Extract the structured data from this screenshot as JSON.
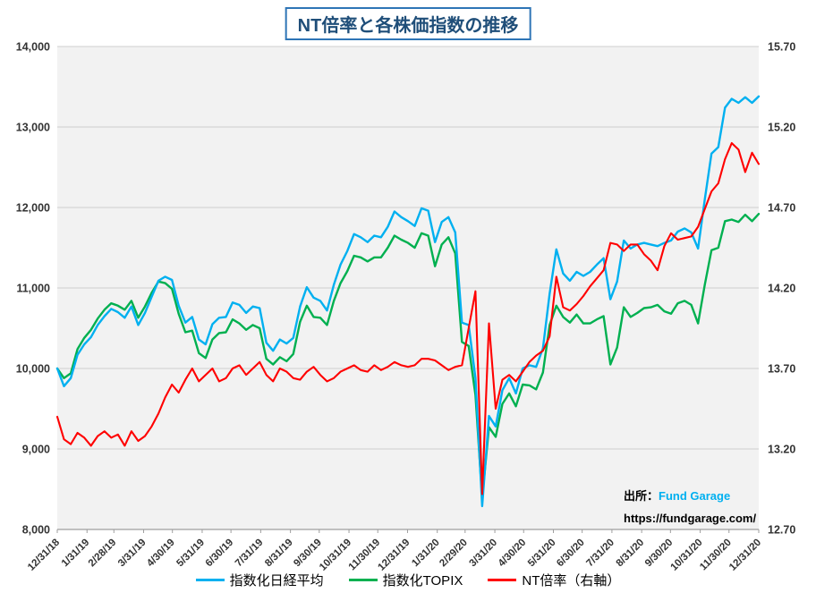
{
  "title": "NT倍率と各株価指数の推移",
  "source_note": {
    "prefix": "出所：",
    "brand": "Fund Garage",
    "url": "https://fundgarage.com/"
  },
  "colors": {
    "nikkei": "#00B0F0",
    "topix": "#00B050",
    "nt": "#FF0000",
    "brand": "#00B0F0",
    "title_border": "#2E75B6",
    "title_text": "#1F4E79",
    "plot_bg": "#F2F2F2",
    "grid": "#CFCFCF",
    "axis_line": "#9E9E9E",
    "axis_text": "#333333"
  },
  "chart_data": {
    "type": "line",
    "title": "NT倍率と各株価指数の推移",
    "legend_position": "bottom",
    "grid": "horizontal-only",
    "x_tick_labels": [
      "12/31/18",
      "1/31/19",
      "2/28/19",
      "3/31/19",
      "4/30/19",
      "5/31/19",
      "6/30/19",
      "7/31/19",
      "8/31/19",
      "9/30/19",
      "10/31/19",
      "11/30/19",
      "12/31/19",
      "1/31/20",
      "2/29/20",
      "3/31/20",
      "4/30/20",
      "5/31/20",
      "6/30/20",
      "7/31/20",
      "8/31/20",
      "9/30/20",
      "10/31/20",
      "11/30/20",
      "12/31/20"
    ],
    "x_tick_days": [
      0,
      31,
      59,
      90,
      120,
      151,
      181,
      212,
      243,
      273,
      304,
      334,
      365,
      396,
      425,
      456,
      486,
      517,
      547,
      578,
      609,
      639,
      670,
      700,
      731
    ],
    "span_days": 731,
    "x_unit": "weekly samples from 12/31/18 to 12/31/20",
    "left_axis": {
      "min": 8000,
      "max": 14000,
      "step": 1000,
      "tick_labels": [
        "8,000",
        "9,000",
        "10,000",
        "11,000",
        "12,000",
        "13,000",
        "14,000"
      ]
    },
    "right_axis": {
      "min": 12.7,
      "max": 15.7,
      "step": 0.5,
      "tick_labels": [
        "12.70",
        "13.20",
        "13.70",
        "14.20",
        "14.70",
        "15.20",
        "15.70"
      ]
    },
    "series": [
      {
        "name": "指数化日経平均",
        "axis": "left",
        "color_key": "nikkei",
        "values": [
          10000,
          9780,
          9880,
          10170,
          10300,
          10390,
          10540,
          10650,
          10740,
          10700,
          10630,
          10770,
          10540,
          10690,
          10890,
          11090,
          11140,
          11100,
          10780,
          10570,
          10640,
          10360,
          10300,
          10550,
          10630,
          10640,
          10820,
          10790,
          10690,
          10770,
          10750,
          10320,
          10220,
          10360,
          10310,
          10380,
          10770,
          11010,
          10880,
          10840,
          10720,
          11040,
          11290,
          11460,
          11670,
          11630,
          11570,
          11650,
          11630,
          11760,
          11950,
          11880,
          11830,
          11770,
          11990,
          11960,
          11570,
          11820,
          11880,
          11690,
          10570,
          10540,
          9880,
          8290,
          9410,
          9280,
          9730,
          9880,
          9690,
          10000,
          10040,
          10020,
          10250,
          10930,
          11480,
          11180,
          11090,
          11200,
          11150,
          11200,
          11290,
          11370,
          10860,
          11080,
          11590,
          11490,
          11540,
          11560,
          11540,
          11520,
          11560,
          11590,
          11700,
          11740,
          11690,
          11490,
          12100,
          12670,
          12750,
          13240,
          13350,
          13300,
          13370,
          13300,
          13380
        ]
      },
      {
        "name": "指数化TOPIX",
        "axis": "left",
        "color_key": "topix",
        "values": [
          10000,
          9880,
          9940,
          10240,
          10380,
          10480,
          10620,
          10730,
          10810,
          10780,
          10730,
          10840,
          10630,
          10770,
          10940,
          11080,
          11060,
          10990,
          10680,
          10450,
          10470,
          10190,
          10130,
          10360,
          10440,
          10450,
          10610,
          10560,
          10480,
          10540,
          10500,
          10120,
          10050,
          10140,
          10090,
          10180,
          10580,
          10780,
          10640,
          10630,
          10540,
          10840,
          11060,
          11210,
          11400,
          11380,
          11330,
          11380,
          11380,
          11500,
          11650,
          11600,
          11560,
          11500,
          11680,
          11650,
          11270,
          11540,
          11630,
          11430,
          10330,
          10280,
          9670,
          8390,
          9270,
          9150,
          9560,
          9690,
          9530,
          9800,
          9790,
          9740,
          9950,
          10540,
          10780,
          10640,
          10570,
          10670,
          10560,
          10560,
          10610,
          10650,
          10050,
          10260,
          10760,
          10640,
          10690,
          10750,
          10760,
          10790,
          10710,
          10680,
          10810,
          10840,
          10790,
          10560,
          11040,
          11470,
          11500,
          11830,
          11850,
          11820,
          11910,
          11830,
          11920
        ]
      },
      {
        "name": "NT倍率（右軸）",
        "axis": "right",
        "color_key": "nt",
        "values": [
          13.4,
          13.26,
          13.23,
          13.3,
          13.27,
          13.22,
          13.28,
          13.31,
          13.27,
          13.29,
          13.22,
          13.31,
          13.25,
          13.28,
          13.34,
          13.42,
          13.52,
          13.6,
          13.55,
          13.63,
          13.7,
          13.62,
          13.66,
          13.7,
          13.62,
          13.64,
          13.7,
          13.72,
          13.66,
          13.7,
          13.74,
          13.66,
          13.62,
          13.7,
          13.68,
          13.64,
          13.63,
          13.68,
          13.71,
          13.66,
          13.62,
          13.64,
          13.68,
          13.7,
          13.72,
          13.69,
          13.68,
          13.72,
          13.69,
          13.71,
          13.74,
          13.72,
          13.71,
          13.72,
          13.76,
          13.76,
          13.75,
          13.72,
          13.69,
          13.71,
          13.72,
          13.95,
          14.18,
          12.92,
          13.98,
          13.45,
          13.63,
          13.66,
          13.62,
          13.68,
          13.74,
          13.78,
          13.81,
          13.9,
          14.27,
          14.08,
          14.06,
          14.1,
          14.15,
          14.21,
          14.26,
          14.31,
          14.48,
          14.47,
          14.43,
          14.47,
          14.47,
          14.41,
          14.37,
          14.31,
          14.46,
          14.54,
          14.5,
          14.51,
          14.52,
          14.58,
          14.69,
          14.8,
          14.85,
          15.0,
          15.1,
          15.06,
          14.92,
          15.04,
          14.97
        ]
      }
    ]
  }
}
